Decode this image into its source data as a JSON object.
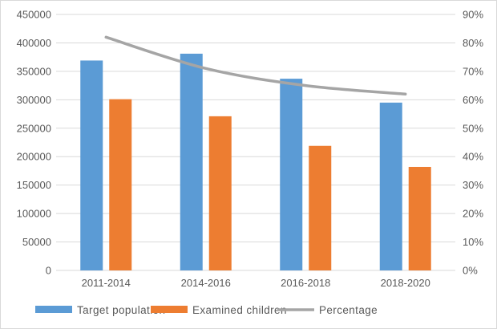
{
  "chart_data": {
    "type": "bar",
    "title": "",
    "xlabel": "",
    "ylabel": "",
    "categories": [
      "2011-2014",
      "2014-2016",
      "2016-2018",
      "2018-2020"
    ],
    "series": [
      {
        "name": "Target population",
        "kind": "bar",
        "axis": "left",
        "color": "#5B9BD5",
        "values": [
          369000,
          381000,
          337000,
          295000
        ]
      },
      {
        "name": "Examined children",
        "kind": "bar",
        "axis": "left",
        "color": "#ED7D31",
        "values": [
          301000,
          271000,
          219000,
          182000
        ]
      },
      {
        "name": "Percentage",
        "kind": "line",
        "axis": "right",
        "color": "#A5A5A5",
        "values": [
          0.82,
          0.71,
          0.65,
          0.62
        ]
      }
    ],
    "ylim": [
      0,
      450000
    ],
    "y_ticks": [
      "0",
      "50000",
      "100000",
      "150000",
      "200000",
      "250000",
      "300000",
      "350000",
      "400000",
      "450000"
    ],
    "y2lim": [
      0,
      0.9
    ],
    "y2_ticks": [
      "0%",
      "10%",
      "20%",
      "30%",
      "40%",
      "50%",
      "60%",
      "70%",
      "80%",
      "90%"
    ],
    "grid": true,
    "legend_position": "bottom"
  }
}
